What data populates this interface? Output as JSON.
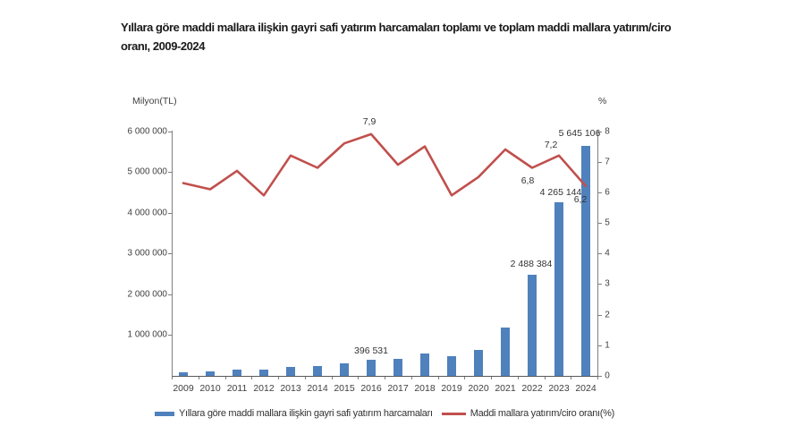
{
  "title": {
    "full": "Yıllara göre maddi mallara ilişkin gayri safi yatırım harcamaları toplamı ve toplam maddi mallara yatırım/ciro oranı, 2009-2024",
    "line1": "Yıllara göre maddi mallara ilişkin gayri safi yatırım harcamaları toplamı ve toplam maddi mallara yatırım/ciro",
    "line2": "oranı, 2009-2024"
  },
  "axes": {
    "left_unit": "Milyon(TL)",
    "right_unit": "%"
  },
  "legend": {
    "items": [
      {
        "label": "Yıllara göre maddi mallara ilişkin gayri safi yatırım harcamaları",
        "color": "#4f81bd",
        "marker": "bar"
      },
      {
        "label": "Maddi mallara yatırım/ciro oranı(%)",
        "color": "#c0504d",
        "marker": "line"
      }
    ]
  },
  "chart_data": {
    "type": "bar",
    "subtype": "bar+line combo, dual axis",
    "title": "Yıllara göre maddi mallara ilişkin gayri safi yatırım harcamaları toplamı ve toplam maddi mallara yatırım/ciro oranı, 2009-2024",
    "categories": [
      "2009",
      "2010",
      "2011",
      "2012",
      "2013",
      "2014",
      "2015",
      "2016",
      "2017",
      "2018",
      "2019",
      "2020",
      "2021",
      "2022",
      "2023",
      "2024"
    ],
    "series": [
      {
        "name": "Yıllara göre maddi mallara ilişkin gayri safi yatırım harcamaları",
        "type": "bar",
        "axis": "left",
        "color": "#4f81bd",
        "values": [
          85000,
          115000,
          160000,
          145000,
          210000,
          240000,
          300000,
          396531,
          420000,
          550000,
          480000,
          640000,
          1190000,
          2488384,
          4265144,
          5645106
        ],
        "labeled_points": [
          {
            "category": "2016",
            "label": "396 531"
          },
          {
            "category": "2022",
            "label": "2 488 384"
          },
          {
            "category": "2023",
            "label": "4 265 144"
          },
          {
            "category": "2024",
            "label": "5 645 106"
          }
        ]
      },
      {
        "name": "Maddi mallara yatırım/ciro oranı(%)",
        "type": "line",
        "axis": "right",
        "color": "#c0504d",
        "values": [
          6.3,
          6.1,
          6.7,
          5.9,
          7.2,
          6.8,
          7.6,
          7.9,
          6.9,
          7.5,
          5.9,
          6.5,
          7.4,
          6.8,
          7.2,
          6.2
        ],
        "labeled_points": [
          {
            "category": "2016",
            "label": "7,9"
          },
          {
            "category": "2022",
            "label": "6,8"
          },
          {
            "category": "2023",
            "label": "7,2"
          },
          {
            "category": "2024",
            "label": "6,2"
          }
        ]
      }
    ],
    "left_axis": {
      "unit": "Milyon(TL)",
      "min": 0,
      "max": 6000000,
      "step": 1000000,
      "tick_labels": [
        "1 000 000",
        "2 000 000",
        "3 000 000",
        "4 000 000",
        "5 000 000",
        "6 000 000"
      ]
    },
    "right_axis": {
      "unit": "%",
      "min": 0,
      "max": 8,
      "step": 1,
      "tick_labels": [
        "0",
        "1",
        "2",
        "3",
        "4",
        "5",
        "6",
        "7",
        "8"
      ]
    },
    "grid": false,
    "legend_position": "bottom"
  }
}
